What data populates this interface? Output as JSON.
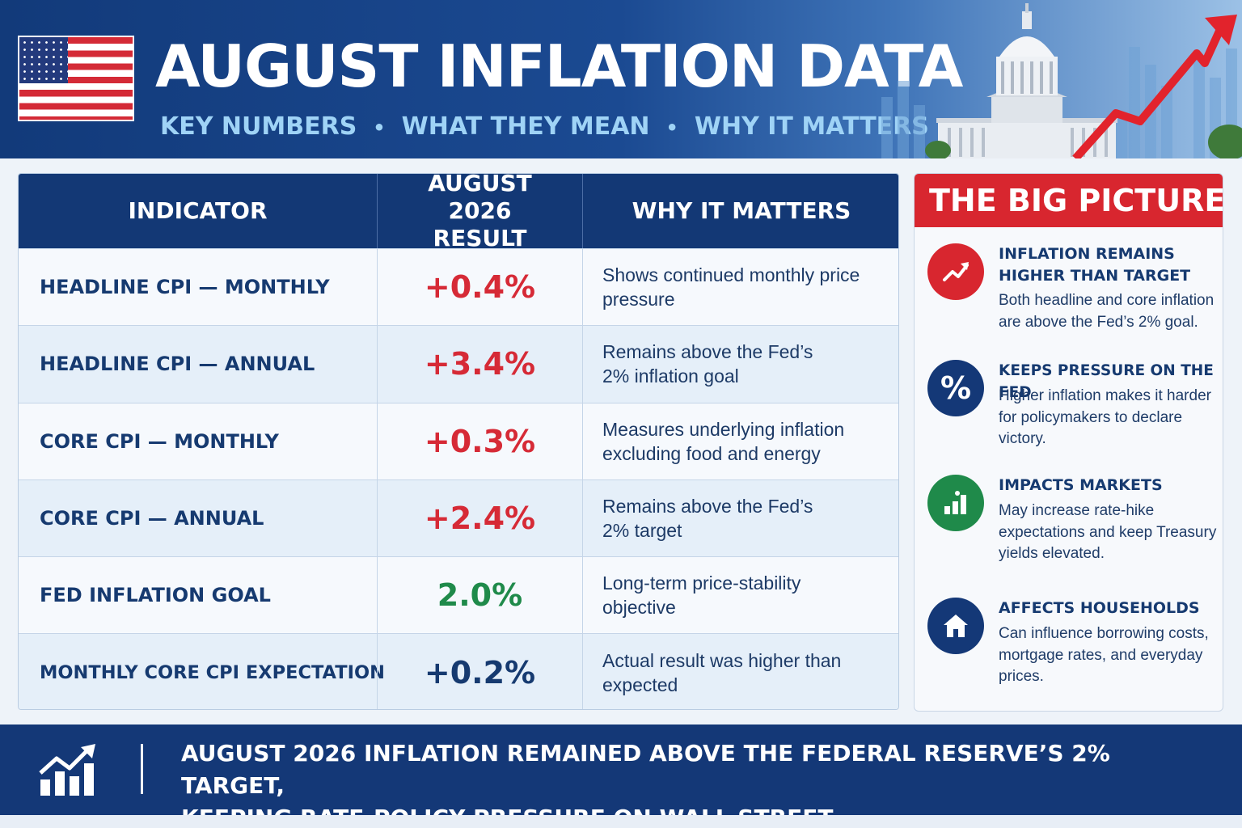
{
  "header": {
    "title": "AUGUST INFLATION DATA",
    "subtitle_parts": [
      "KEY NUMBERS",
      "WHAT THEY MEAN",
      "WHY IT MATTERS"
    ]
  },
  "table": {
    "headers": [
      "INDICATOR",
      "AUGUST 2026 RESULT",
      "WHY IT MATTERS"
    ],
    "rows": [
      {
        "indicator": "HEADLINE CPI — MONTHLY",
        "result": "+0.4%",
        "tone": "red",
        "why": "Shows continued monthly price pressure"
      },
      {
        "indicator": "HEADLINE CPI — ANNUAL",
        "result": "+3.4%",
        "tone": "red",
        "why": "Remains above the Fed’s 2% inflation goal"
      },
      {
        "indicator": "CORE CPI — MONTHLY",
        "result": "+0.3%",
        "tone": "red",
        "why": "Measures underlying inflation excluding food and energy"
      },
      {
        "indicator": "CORE CPI — ANNUAL",
        "result": "+2.4%",
        "tone": "red",
        "why": "Remains above the Fed’s 2% target"
      },
      {
        "indicator": "FED INFLATION GOAL",
        "result": "2.0%",
        "tone": "green",
        "why": "Long-term price-stability objective"
      },
      {
        "indicator": "MONTHLY CORE CPI EXPECTATION",
        "result": "+0.2%",
        "tone": "navy",
        "why": "Actual result was higher than expected"
      }
    ]
  },
  "big_picture": {
    "title": "THE BIG PICTURE",
    "items": [
      {
        "icon": "trend-up-icon",
        "color": "#d8262f",
        "title": "INFLATION REMAINS HIGHER THAN TARGET",
        "text": "Both headline and core inflation are above the Fed’s 2% goal."
      },
      {
        "icon": "percent-icon",
        "color": "#143877",
        "title": "KEEPS PRESSURE ON THE FED",
        "text": "Higher inflation makes it harder for policymakers to declare victory."
      },
      {
        "icon": "bar-chart-icon",
        "color": "#1f8a4a",
        "title": "IMPACTS MARKETS",
        "text": "May increase rate-hike expectations and keep Treasury yields elevated."
      },
      {
        "icon": "house-icon",
        "color": "#143877",
        "title": "AFFECTS HOUSEHOLDS",
        "text": "Can influence borrowing costs, mortgage rates, and everyday prices."
      }
    ]
  },
  "footer": {
    "line1": "AUGUST 2026 INFLATION REMAINED ABOVE THE FEDERAL RESERVE’S 2% TARGET,",
    "line2": "KEEPING RATE-POLICY PRESSURE ON WALL STREET."
  },
  "colors": {
    "navy": "#143877",
    "red": "#d62a36",
    "green": "#1f8a4a",
    "light_blue": "#9fd3f6"
  }
}
